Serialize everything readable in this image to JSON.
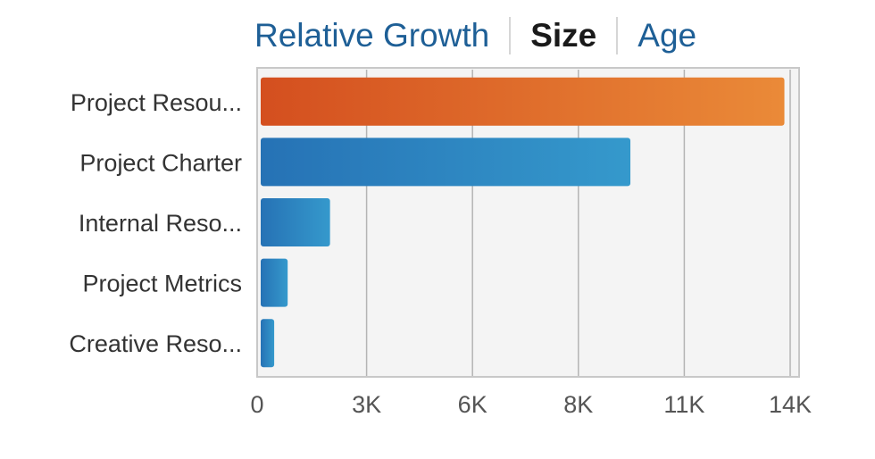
{
  "tabs": [
    {
      "label": "Relative Growth",
      "active": false
    },
    {
      "label": "Size",
      "active": true
    },
    {
      "label": "Age",
      "active": false
    }
  ],
  "chart_data": {
    "type": "bar",
    "orientation": "horizontal",
    "categories": [
      "Project Resou...",
      "Project Charter",
      "Internal Reso...",
      "Project Metrics",
      "Creative Reso..."
    ],
    "values": [
      13600,
      9600,
      1800,
      700,
      350
    ],
    "highlight_index": 0,
    "xticks": [
      0,
      2750,
      5500,
      8250,
      11000,
      13750
    ],
    "xtick_labels": [
      "0",
      "3K",
      "6K",
      "8K",
      "11K",
      "14K"
    ],
    "xlim": [
      0,
      13750
    ],
    "grid": true,
    "colors": {
      "highlight_start": "#d44f1f",
      "highlight_end": "#ea8a38",
      "bar_start": "#2672b5",
      "bar_end": "#3599cc",
      "plot_background": "#f4f4f4",
      "grid": "#b4b4b4",
      "frame": "#c8c8c8"
    }
  }
}
